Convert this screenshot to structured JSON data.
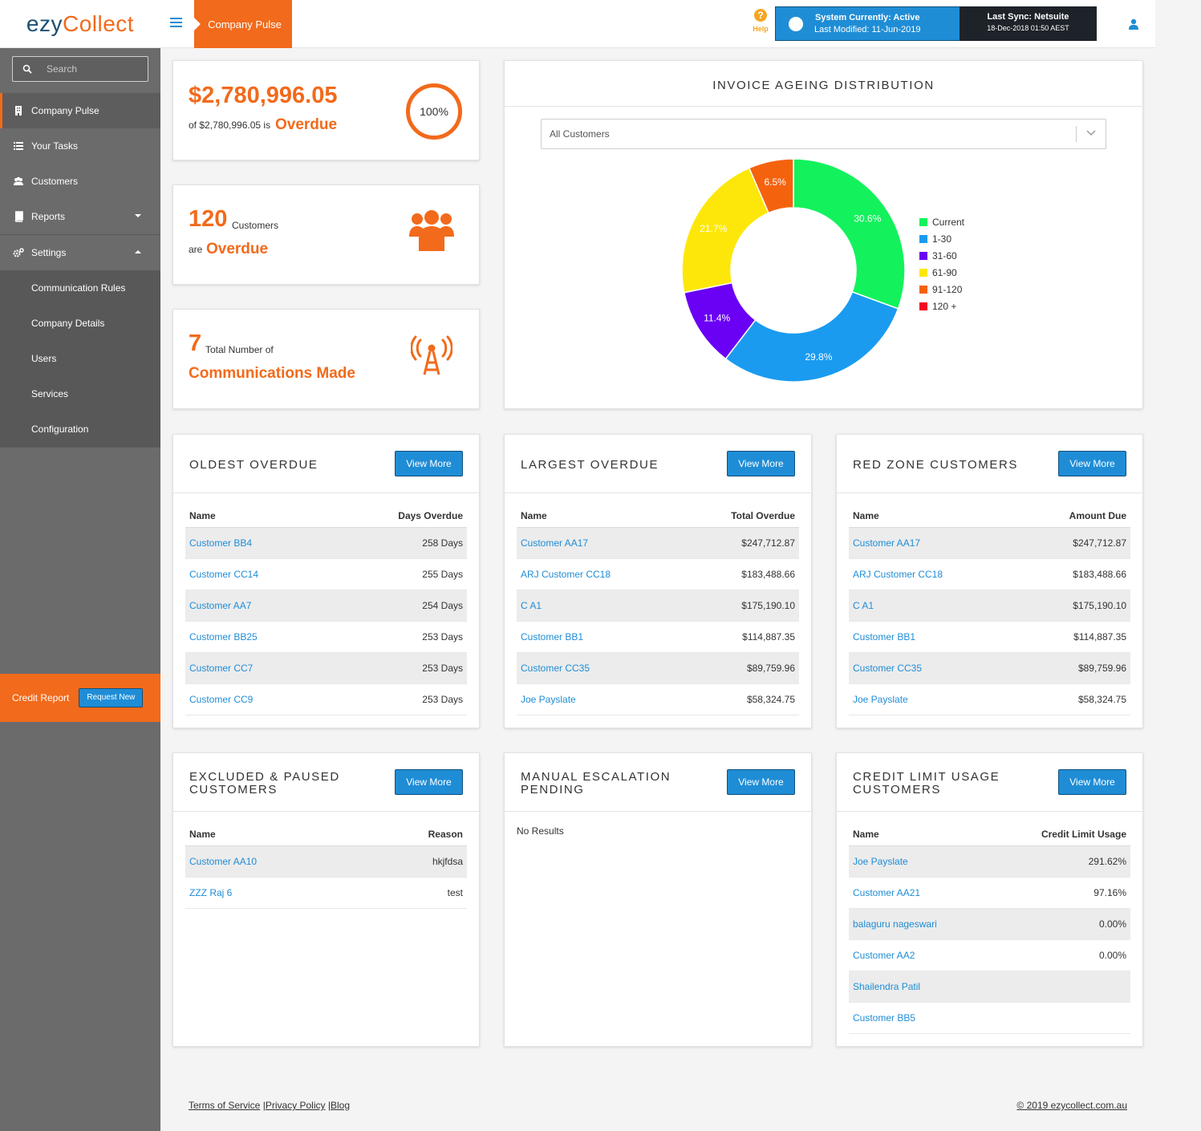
{
  "header": {
    "logo_part1": "ezy",
    "logo_part2": "Collect",
    "page_tab": "Company Pulse",
    "help_label": "Help",
    "system_status_line1": "System Currently: Active",
    "system_status_line2": "Last Modified: 11-Jun-2019",
    "last_sync_line1": "Last Sync: Netsuite",
    "last_sync_line2": "18-Dec-2018 01:50 AEST"
  },
  "sidebar": {
    "search_placeholder": "Search",
    "items": [
      {
        "label": "Company Pulse"
      },
      {
        "label": "Your Tasks"
      },
      {
        "label": "Customers"
      },
      {
        "label": "Reports"
      },
      {
        "label": "Settings"
      }
    ],
    "settings_sub": [
      {
        "label": "Communication Rules"
      },
      {
        "label": "Company Details"
      },
      {
        "label": "Users"
      },
      {
        "label": "Services"
      },
      {
        "label": "Configuration"
      }
    ],
    "credit_report_label": "Credit Report",
    "credit_report_button": "Request New"
  },
  "kpi": {
    "overdue_amount": "$2,780,996.05",
    "overdue_of": "of $2,780,996.05 is",
    "overdue_word": "Overdue",
    "overdue_percent": "100%",
    "customers_count": "120",
    "customers_label": "Customers",
    "customers_are": "are",
    "customers_overdue": "Overdue",
    "comms_count": "7",
    "comms_label": "Total Number of",
    "comms_made": "Communications Made"
  },
  "ageing": {
    "title": "INVOICE AGEING DISTRIBUTION",
    "filter_value": "All Customers"
  },
  "chart_data": {
    "type": "pie",
    "donut": true,
    "title": "INVOICE AGEING DISTRIBUTION",
    "categories": [
      "Current",
      "1-30",
      "31-60",
      "61-90",
      "91-120",
      "120 +"
    ],
    "values": [
      30.6,
      29.8,
      11.4,
      21.7,
      6.5,
      0
    ],
    "labels": [
      "30.6%",
      "29.8%",
      "11.4%",
      "21.7%",
      "6.5%",
      ""
    ],
    "colors": [
      "#13f25c",
      "#1a9bf0",
      "#6a00f4",
      "#fde70a",
      "#f5620e",
      "#f10a1f"
    ],
    "legend_position": "right"
  },
  "view_more_label": "View More",
  "oldest_overdue": {
    "title": "OLDEST OVERDUE",
    "col1": "Name",
    "col2": "Days Overdue",
    "rows": [
      {
        "name": "Customer BB4",
        "value": "258 Days"
      },
      {
        "name": "Customer CC14",
        "value": "255 Days"
      },
      {
        "name": "Customer AA7",
        "value": "254 Days"
      },
      {
        "name": "Customer BB25",
        "value": "253 Days"
      },
      {
        "name": "Customer CC7",
        "value": "253 Days"
      },
      {
        "name": "Customer CC9",
        "value": "253 Days"
      }
    ]
  },
  "largest_overdue": {
    "title": "LARGEST OVERDUE",
    "col1": "Name",
    "col2": "Total Overdue",
    "rows": [
      {
        "name": "Customer AA17",
        "value": "$247,712.87"
      },
      {
        "name": "ARJ Customer CC18",
        "value": "$183,488.66"
      },
      {
        "name": "C A1",
        "value": "$175,190.10"
      },
      {
        "name": "Customer BB1",
        "value": "$114,887.35"
      },
      {
        "name": "Customer CC35",
        "value": "$89,759.96"
      },
      {
        "name": "Joe Payslate",
        "value": "$58,324.75"
      }
    ]
  },
  "red_zone": {
    "title": "RED ZONE CUSTOMERS",
    "col1": "Name",
    "col2": "Amount Due",
    "rows": [
      {
        "name": "Customer AA17",
        "value": "$247,712.87"
      },
      {
        "name": "ARJ Customer CC18",
        "value": "$183,488.66"
      },
      {
        "name": "C A1",
        "value": "$175,190.10"
      },
      {
        "name": "Customer BB1",
        "value": "$114,887.35"
      },
      {
        "name": "Customer CC35",
        "value": "$89,759.96"
      },
      {
        "name": "Joe Payslate",
        "value": "$58,324.75"
      }
    ]
  },
  "excluded": {
    "title_line1": "EXCLUDED & PAUSED",
    "title_line2": "CUSTOMERS",
    "col1": "Name",
    "col2": "Reason",
    "rows": [
      {
        "name": "Customer AA10",
        "value": "hkjfdsa"
      },
      {
        "name": "ZZZ Raj 6",
        "value": "test"
      }
    ]
  },
  "manual_escalation": {
    "title_line1": "MANUAL ESCALATION",
    "title_line2": "PENDING",
    "no_results": "No Results"
  },
  "credit_limit": {
    "title_line1": "CREDIT LIMIT USAGE",
    "title_line2": "CUSTOMERS",
    "col1": "Name",
    "col2": "Credit Limit Usage",
    "rows": [
      {
        "name": "Joe Payslate",
        "value": "291.62%"
      },
      {
        "name": "Customer AA21",
        "value": "97.16%"
      },
      {
        "name": "balaguru nageswari",
        "value": "0.00%"
      },
      {
        "name": "Customer AA2",
        "value": "0.00%"
      },
      {
        "name": "Shailendra Patil",
        "value": ""
      },
      {
        "name": "Customer BB5",
        "value": ""
      }
    ]
  },
  "footer": {
    "terms": "Terms of Service",
    "privacy": "Privacy Policy",
    "blog": "Blog",
    "copyright": "© 2019 ezycollect.com.au"
  },
  "colors": {
    "brand_orange": "#f26a1b",
    "brand_blue": "#1f8dd6",
    "sidebar": "#6b6b6b"
  }
}
